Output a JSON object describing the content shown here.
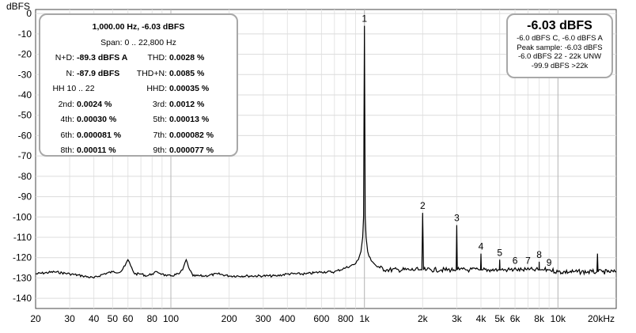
{
  "chart_data": {
    "type": "line",
    "ylabel": "dBFS",
    "xlabel": "",
    "xscale": "log",
    "xlim": [
      20,
      20000
    ],
    "ylim": [
      -145,
      2
    ],
    "grid": true,
    "y_ticks": [
      0,
      -10,
      -20,
      -30,
      -40,
      -50,
      -60,
      -70,
      -80,
      -90,
      -100,
      -110,
      -120,
      -130,
      -140
    ],
    "x_ticks": [
      {
        "v": 20,
        "label": "20"
      },
      {
        "v": 30,
        "label": "30"
      },
      {
        "v": 40,
        "label": "40"
      },
      {
        "v": 50,
        "label": "50"
      },
      {
        "v": 60,
        "label": "60"
      },
      {
        "v": 80,
        "label": "80"
      },
      {
        "v": 100,
        "label": "100"
      },
      {
        "v": 200,
        "label": "200"
      },
      {
        "v": 300,
        "label": "300"
      },
      {
        "v": 400,
        "label": "400"
      },
      {
        "v": 600,
        "label": "600"
      },
      {
        "v": 800,
        "label": "800"
      },
      {
        "v": 1000,
        "label": "1k"
      },
      {
        "v": 2000,
        "label": "2k"
      },
      {
        "v": 3000,
        "label": "3k"
      },
      {
        "v": 4000,
        "label": "4k"
      },
      {
        "v": 5000,
        "label": "5k"
      },
      {
        "v": 6000,
        "label": "6k"
      },
      {
        "v": 8000,
        "label": "8k"
      },
      {
        "v": 10000,
        "label": "10k"
      },
      {
        "v": 20000,
        "label": "20kHz"
      }
    ],
    "series": [
      {
        "color": "#000000",
        "x": [
          20,
          25,
          30,
          35,
          40,
          45,
          50,
          55,
          58,
          60,
          62,
          65,
          70,
          75,
          80,
          85,
          90,
          95,
          100,
          110,
          115,
          120,
          125,
          130,
          150,
          175,
          200,
          250,
          300,
          350,
          400,
          500,
          600,
          700,
          800,
          850,
          900,
          930,
          960,
          980,
          990,
          1000,
          1010,
          1020,
          1040,
          1070,
          1100,
          1150,
          1200,
          1300,
          1500,
          1700,
          1900,
          1980,
          2000,
          2020,
          2100,
          2500,
          2900,
          2980,
          3000,
          3020,
          3100,
          3500,
          3900,
          3980,
          4000,
          4020,
          4100,
          4500,
          4900,
          4980,
          5000,
          5020,
          5100,
          5500,
          5900,
          6000,
          6100,
          6500,
          6900,
          7000,
          7100,
          7500,
          7900,
          7980,
          8000,
          8020,
          8100,
          8500,
          8900,
          9000,
          9100,
          10000,
          12000,
          15000,
          15900,
          16000,
          16100,
          17000,
          18000,
          20000
        ],
        "y": [
          -128,
          -127,
          -128,
          -129,
          -130,
          -128,
          -127,
          -127,
          -124,
          -121,
          -124,
          -128,
          -128,
          -129,
          -128,
          -127,
          -128,
          -129,
          -129,
          -128,
          -126,
          -121,
          -126,
          -129,
          -129,
          -128,
          -129,
          -129,
          -129,
          -129,
          -128,
          -128,
          -127,
          -127,
          -125,
          -124,
          -123,
          -121,
          -117,
          -110,
          -100,
          -6.03,
          -100,
          -110,
          -117,
          -120,
          -122,
          -124,
          -125,
          -126,
          -126,
          -126,
          -126,
          -126,
          -98,
          -126,
          -126,
          -126,
          -126,
          -126,
          -104,
          -126,
          -126,
          -126,
          -126,
          -126,
          -118,
          -126,
          -126,
          -126,
          -126,
          -126,
          -121,
          -126,
          -126,
          -126,
          -126,
          -125,
          -126,
          -126,
          -126,
          -125,
          -126,
          -126,
          -126,
          -126,
          -122,
          -126,
          -126,
          -126,
          -126,
          -126,
          -126,
          -127,
          -127,
          -127,
          -127,
          -118,
          -127,
          -127,
          -127,
          -127
        ]
      }
    ],
    "annotations": [
      {
        "label": "1",
        "x": 1000,
        "y": -6.03
      },
      {
        "label": "2",
        "x": 2000,
        "y": -98
      },
      {
        "label": "3",
        "x": 3000,
        "y": -104
      },
      {
        "label": "4",
        "x": 4000,
        "y": -118
      },
      {
        "label": "5",
        "x": 5000,
        "y": -121
      },
      {
        "label": "6",
        "x": 6000,
        "y": -125
      },
      {
        "label": "7",
        "x": 7000,
        "y": -125
      },
      {
        "label": "8",
        "x": 8000,
        "y": -122
      },
      {
        "label": "9",
        "x": 9000,
        "y": -126
      }
    ]
  },
  "stats": {
    "header": "1,000.00 Hz, -6.03 dBFS",
    "span": "Span: 0 .. 22,800 Hz",
    "nd_label": "N+D:",
    "nd_value": "-89.3 dBFS A",
    "thd_label": "THD:",
    "thd_value": "0.0028 %",
    "n_label": "N:",
    "n_value": "-87.9 dBFS",
    "thdn_label": "THD+N:",
    "thdn_value": "0.0085 %",
    "hh_label": "HH 10 .. 22",
    "hhd_label": "HHD:",
    "hhd_value": "0.00035 %",
    "h2_label": "2nd:",
    "h2_value": "0.0024 %",
    "h3_label": "3rd:",
    "h3_value": "0.0012 %",
    "h4_label": "4th:",
    "h4_value": "0.00030 %",
    "h5_label": "5th:",
    "h5_value": "0.00013 %",
    "h6_label": "6th:",
    "h6_value": "0.000081 %",
    "h7_label": "7th:",
    "h7_value": "0.000082 %",
    "h8_label": "8th:",
    "h8_value": "0.00011 %",
    "h9_label": "9th:",
    "h9_value": "0.000077 %"
  },
  "level": {
    "big": "-6.03 dBFS",
    "line1": "-6.0 dBFS C, -6.0 dBFS A",
    "line2": "Peak sample: -6.03 dBFS",
    "line3": "-6.0 dBFS 22 - 22k UNW",
    "line4": "-99.9 dBFS >22k"
  }
}
